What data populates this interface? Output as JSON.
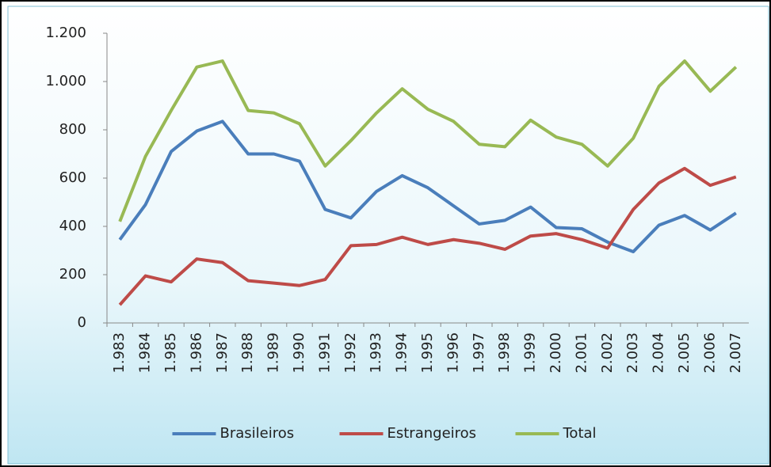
{
  "chart_data": {
    "type": "line",
    "categories": [
      "1.983",
      "1.984",
      "1.985",
      "1.986",
      "1.987",
      "1.988",
      "1.989",
      "1.990",
      "1.991",
      "1.992",
      "1.993",
      "1.994",
      "1.995",
      "1.996",
      "1.997",
      "1.998",
      "1.999",
      "2.000",
      "2.001",
      "2.002",
      "2.003",
      "2.004",
      "2.005",
      "2.006",
      "2.007"
    ],
    "series": [
      {
        "name": "Brasileiros",
        "color": "#4a7ebb",
        "values": [
          345,
          490,
          710,
          795,
          835,
          700,
          700,
          670,
          470,
          435,
          545,
          610,
          560,
          485,
          410,
          425,
          480,
          395,
          390,
          335,
          295,
          405,
          445,
          385,
          455
        ]
      },
      {
        "name": "Estrangeiros",
        "color": "#be4b48",
        "values": [
          75,
          195,
          170,
          265,
          250,
          175,
          165,
          155,
          180,
          320,
          325,
          355,
          325,
          345,
          330,
          305,
          360,
          370,
          345,
          310,
          470,
          580,
          640,
          570,
          605
        ]
      },
      {
        "name": "Total",
        "color": "#98b954",
        "values": [
          420,
          690,
          880,
          1060,
          1085,
          880,
          870,
          825,
          650,
          755,
          870,
          970,
          885,
          835,
          740,
          730,
          840,
          770,
          740,
          650,
          765,
          980,
          1085,
          960,
          1060
        ]
      }
    ],
    "ylim": [
      0,
      1200
    ],
    "yticks": [
      0,
      200,
      400,
      600,
      800,
      {
        "value": 1000,
        "label": "1.000"
      },
      {
        "value": 1200,
        "label": "1.200"
      }
    ],
    "legend": "bottom"
  }
}
